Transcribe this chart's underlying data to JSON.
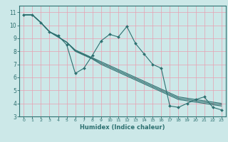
{
  "title": "",
  "xlabel": "Humidex (Indice chaleur)",
  "background_color": "#cce8e8",
  "grid_color": "#e8a0b0",
  "line_color": "#2d7070",
  "xlim": [
    -0.5,
    23.5
  ],
  "ylim": [
    3,
    11.5
  ],
  "xticks": [
    0,
    1,
    2,
    3,
    4,
    5,
    6,
    7,
    8,
    9,
    10,
    11,
    12,
    13,
    14,
    15,
    16,
    17,
    18,
    19,
    20,
    21,
    22,
    23
  ],
  "yticks": [
    3,
    4,
    5,
    6,
    7,
    8,
    9,
    10,
    11
  ],
  "line1_x": [
    0,
    1,
    2,
    3,
    4,
    5,
    6,
    7,
    8,
    9,
    10,
    11,
    12,
    13,
    14,
    15,
    16,
    17,
    18,
    19,
    20,
    21,
    22,
    23
  ],
  "line1_y": [
    10.8,
    10.8,
    10.2,
    9.5,
    9.2,
    8.5,
    6.3,
    6.7,
    7.7,
    8.8,
    9.3,
    9.1,
    9.9,
    8.6,
    7.8,
    7.0,
    6.7,
    3.8,
    3.7,
    4.0,
    4.3,
    4.5,
    3.7,
    3.5
  ],
  "line2_x": [
    0,
    1,
    2,
    3,
    4,
    5,
    6,
    7,
    8,
    9,
    10,
    11,
    12,
    13,
    14,
    15,
    16,
    17,
    18,
    19,
    20,
    21,
    22,
    23
  ],
  "line2_y": [
    10.8,
    10.8,
    10.2,
    9.5,
    9.1,
    8.7,
    8.1,
    7.8,
    7.5,
    7.2,
    6.9,
    6.6,
    6.3,
    6.0,
    5.7,
    5.4,
    5.1,
    4.8,
    4.5,
    4.4,
    4.3,
    4.2,
    4.1,
    4.0
  ],
  "line3_x": [
    0,
    1,
    2,
    3,
    4,
    5,
    6,
    7,
    8,
    9,
    10,
    11,
    12,
    13,
    14,
    15,
    16,
    17,
    18,
    19,
    20,
    21,
    22,
    23
  ],
  "line3_y": [
    10.8,
    10.8,
    10.2,
    9.5,
    9.1,
    8.7,
    8.05,
    7.75,
    7.45,
    7.1,
    6.8,
    6.5,
    6.2,
    5.9,
    5.6,
    5.3,
    5.0,
    4.7,
    4.4,
    4.3,
    4.2,
    4.1,
    4.0,
    3.9
  ],
  "line4_x": [
    0,
    1,
    2,
    3,
    4,
    5,
    6,
    7,
    8,
    9,
    10,
    11,
    12,
    13,
    14,
    15,
    16,
    17,
    18,
    19,
    20,
    21,
    22,
    23
  ],
  "line4_y": [
    10.8,
    10.8,
    10.2,
    9.5,
    9.1,
    8.7,
    8.0,
    7.7,
    7.4,
    7.0,
    6.7,
    6.4,
    6.1,
    5.8,
    5.5,
    5.2,
    4.9,
    4.6,
    4.3,
    4.2,
    4.1,
    4.0,
    3.9,
    3.8
  ]
}
